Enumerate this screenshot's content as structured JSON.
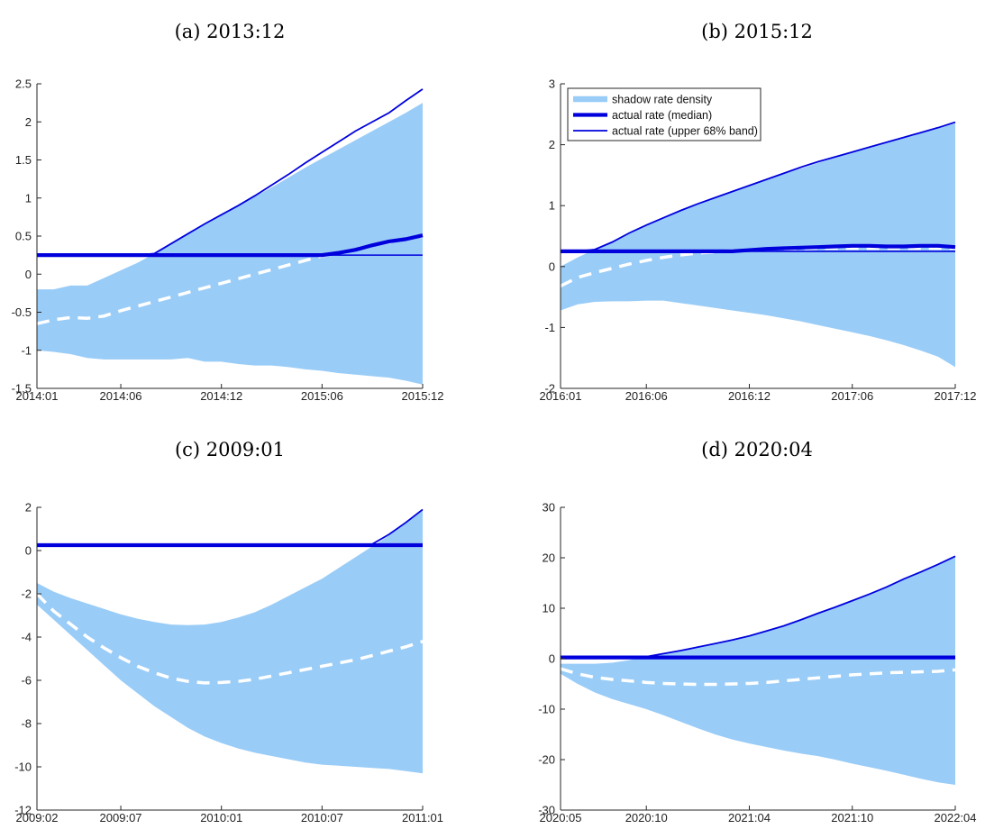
{
  "chart_data": [
    {
      "type": "area",
      "title": "(a) 2013:12",
      "x_tick_labels": [
        "2014:01",
        "2014:06",
        "2014:12",
        "2015:06",
        "2015:12"
      ],
      "x_tick_positions": [
        1,
        6,
        12,
        18,
        24
      ],
      "x_range": [
        1,
        24
      ],
      "ylim": [
        -1.5,
        2.5
      ],
      "y_ticks": [
        -1.5,
        -1,
        -0.5,
        0,
        0.5,
        1,
        1.5,
        2,
        2.5
      ],
      "y_tick_labels": [
        "-1.5",
        "-1",
        "-0.5",
        "0",
        "0.5",
        "1",
        "1.5",
        "2",
        "2.5"
      ],
      "series": [
        {
          "kind": "band",
          "upper": [
            -0.2,
            -0.2,
            -0.15,
            -0.15,
            -0.05,
            0.05,
            0.15,
            0.27,
            0.4,
            0.53,
            0.66,
            0.78,
            0.9,
            1.02,
            1.14,
            1.27,
            1.4,
            1.52,
            1.64,
            1.76,
            1.88,
            2.0,
            2.12,
            2.25
          ],
          "lower": [
            -1.0,
            -1.02,
            -1.05,
            -1.1,
            -1.12,
            -1.12,
            -1.12,
            -1.12,
            -1.12,
            -1.1,
            -1.15,
            -1.15,
            -1.18,
            -1.2,
            -1.2,
            -1.22,
            -1.25,
            -1.27,
            -1.3,
            -1.32,
            -1.34,
            -1.36,
            -1.4,
            -1.45
          ]
        },
        {
          "kind": "dashed",
          "values": [
            -0.65,
            -0.6,
            -0.57,
            -0.58,
            -0.55,
            -0.48,
            -0.42,
            -0.36,
            -0.3,
            -0.24,
            -0.18,
            -0.12,
            -0.06,
            0.0,
            0.06,
            0.12,
            0.18,
            0.24,
            0.28,
            0.33,
            0.38,
            0.42,
            0.46,
            0.5
          ]
        },
        {
          "kind": "median",
          "values": [
            0.25,
            0.25,
            0.25,
            0.25,
            0.25,
            0.25,
            0.25,
            0.25,
            0.25,
            0.25,
            0.25,
            0.25,
            0.25,
            0.25,
            0.25,
            0.25,
            0.25,
            0.25,
            0.28,
            0.32,
            0.38,
            0.43,
            0.46,
            0.51
          ]
        },
        {
          "kind": "upper_band",
          "values": [
            0.25,
            0.25,
            0.25,
            0.25,
            0.25,
            0.25,
            0.25,
            0.27,
            0.4,
            0.53,
            0.66,
            0.78,
            0.9,
            1.03,
            1.17,
            1.31,
            1.46,
            1.6,
            1.74,
            1.88,
            2.0,
            2.12,
            2.28,
            2.43
          ]
        },
        {
          "kind": "actual",
          "values": [
            0.25,
            0.25,
            0.25,
            0.25,
            0.25,
            0.25,
            0.25,
            0.25,
            0.25,
            0.25,
            0.25,
            0.25,
            0.25,
            0.25,
            0.25,
            0.25,
            0.25,
            0.25,
            0.25,
            0.25,
            0.25,
            0.25,
            0.25,
            0.25
          ]
        }
      ]
    },
    {
      "type": "area",
      "title": "(b) 2015:12",
      "x_tick_labels": [
        "2016:01",
        "2016:06",
        "2016:12",
        "2017:06",
        "2017:12"
      ],
      "x_tick_positions": [
        1,
        6,
        12,
        18,
        24
      ],
      "x_range": [
        1,
        24
      ],
      "ylim": [
        -2,
        3
      ],
      "y_ticks": [
        -2,
        -1,
        0,
        1,
        2,
        3
      ],
      "y_tick_labels": [
        "-2",
        "-1",
        "0",
        "1",
        "2",
        "3"
      ],
      "legend": {
        "placement": "top-left",
        "entries": [
          {
            "label": "shadow rate density",
            "color": "#99ccf7"
          },
          {
            "label": "actual rate (median)",
            "color": "#0000dd"
          },
          {
            "label": "actual rate (upper 68% band)",
            "color": "#0000dd"
          }
        ]
      },
      "series": [
        {
          "kind": "band",
          "upper": [
            0.0,
            0.15,
            0.28,
            0.4,
            0.55,
            0.68,
            0.8,
            0.92,
            1.03,
            1.13,
            1.23,
            1.33,
            1.43,
            1.52,
            1.61,
            1.7,
            1.79,
            1.87,
            1.95,
            2.03,
            2.11,
            2.19,
            2.27,
            2.35
          ]
        },
        {
          "kind": "band_lower",
          "lower": [
            -0.72,
            -0.62,
            -0.58,
            -0.57,
            -0.57,
            -0.56,
            -0.56,
            -0.6,
            -0.64,
            -0.68,
            -0.72,
            -0.76,
            -0.8,
            -0.85,
            -0.9,
            -0.96,
            -1.02,
            -1.08,
            -1.14,
            -1.21,
            -1.29,
            -1.38,
            -1.48,
            -1.65
          ]
        },
        {
          "kind": "dashed",
          "values": [
            -0.32,
            -0.18,
            -0.1,
            -0.03,
            0.04,
            0.1,
            0.15,
            0.19,
            0.22,
            0.24,
            0.26,
            0.27,
            0.28,
            0.29,
            0.29,
            0.3,
            0.3,
            0.3,
            0.3,
            0.3,
            0.3,
            0.3,
            0.3,
            0.3
          ]
        },
        {
          "kind": "median",
          "values": [
            0.25,
            0.25,
            0.25,
            0.25,
            0.25,
            0.25,
            0.25,
            0.25,
            0.25,
            0.25,
            0.25,
            0.27,
            0.29,
            0.3,
            0.31,
            0.32,
            0.33,
            0.34,
            0.34,
            0.33,
            0.33,
            0.34,
            0.34,
            0.32
          ]
        },
        {
          "kind": "upper_band",
          "values": [
            0.25,
            0.25,
            0.28,
            0.4,
            0.55,
            0.68,
            0.8,
            0.92,
            1.03,
            1.13,
            1.23,
            1.33,
            1.43,
            1.53,
            1.63,
            1.72,
            1.8,
            1.88,
            1.96,
            2.04,
            2.12,
            2.2,
            2.28,
            2.37
          ]
        },
        {
          "kind": "actual",
          "values": [
            0.25,
            0.25,
            0.25,
            0.25,
            0.25,
            0.25,
            0.25,
            0.25,
            0.25,
            0.25,
            0.25,
            0.25,
            0.25,
            0.25,
            0.25,
            0.25,
            0.25,
            0.25,
            0.25,
            0.25,
            0.25,
            0.25,
            0.25,
            0.25
          ]
        }
      ]
    },
    {
      "type": "area",
      "title": "(c) 2009:01",
      "x_tick_labels": [
        "2009:02",
        "2009:07",
        "2010:01",
        "2010:07",
        "2011:01"
      ],
      "x_tick_positions": [
        1,
        6,
        12,
        18,
        24
      ],
      "x_range": [
        1,
        24
      ],
      "ylim": [
        -12,
        2
      ],
      "y_ticks": [
        -12,
        -10,
        -8,
        -6,
        -4,
        -2,
        0,
        2
      ],
      "y_tick_labels": [
        "-12",
        "-10",
        "-8",
        "-6",
        "-4",
        "-2",
        "0",
        "2"
      ],
      "series": [
        {
          "kind": "band",
          "upper": [
            -1.5,
            -1.9,
            -2.2,
            -2.45,
            -2.7,
            -2.95,
            -3.15,
            -3.3,
            -3.42,
            -3.45,
            -3.42,
            -3.3,
            -3.1,
            -2.85,
            -2.5,
            -2.1,
            -1.7,
            -1.3,
            -0.8,
            -0.3,
            0.2,
            0.7,
            1.3,
            1.9
          ]
        },
        {
          "kind": "band_lower",
          "lower": [
            -2.5,
            -3.2,
            -3.9,
            -4.6,
            -5.3,
            -6.0,
            -6.6,
            -7.2,
            -7.7,
            -8.2,
            -8.6,
            -8.9,
            -9.15,
            -9.35,
            -9.5,
            -9.65,
            -9.8,
            -9.9,
            -9.95,
            -10.0,
            -10.05,
            -10.1,
            -10.2,
            -10.3
          ]
        },
        {
          "kind": "dashed",
          "values": [
            -2.0,
            -2.8,
            -3.4,
            -4.0,
            -4.5,
            -4.95,
            -5.35,
            -5.65,
            -5.9,
            -6.05,
            -6.12,
            -6.1,
            -6.05,
            -5.95,
            -5.8,
            -5.65,
            -5.5,
            -5.35,
            -5.2,
            -5.05,
            -4.85,
            -4.65,
            -4.45,
            -4.2
          ]
        },
        {
          "kind": "median",
          "values": [
            0.25,
            0.25,
            0.25,
            0.25,
            0.25,
            0.25,
            0.25,
            0.25,
            0.25,
            0.25,
            0.25,
            0.25,
            0.25,
            0.25,
            0.25,
            0.25,
            0.25,
            0.25,
            0.25,
            0.25,
            0.25,
            0.25,
            0.25,
            0.25
          ]
        },
        {
          "kind": "upper_band",
          "values": [
            0.25,
            0.25,
            0.25,
            0.25,
            0.25,
            0.25,
            0.25,
            0.25,
            0.25,
            0.25,
            0.25,
            0.25,
            0.25,
            0.25,
            0.25,
            0.25,
            0.25,
            0.25,
            0.25,
            0.25,
            0.3,
            0.75,
            1.3,
            1.9
          ]
        },
        {
          "kind": "actual",
          "values": [
            0.25,
            0.25,
            0.25,
            0.25,
            0.25,
            0.25,
            0.25,
            0.25,
            0.25,
            0.25,
            0.25,
            0.25,
            0.25,
            0.25,
            0.25,
            0.25,
            0.25,
            0.25,
            0.25,
            0.25,
            0.25,
            0.25,
            0.25,
            0.25
          ]
        }
      ]
    },
    {
      "type": "area",
      "title": "(d) 2020:04",
      "x_tick_labels": [
        "2020:05",
        "2020:10",
        "2021:04",
        "2021:10",
        "2022:04"
      ],
      "x_tick_positions": [
        1,
        6,
        12,
        18,
        24
      ],
      "x_range": [
        1,
        24
      ],
      "ylim": [
        -30,
        30
      ],
      "y_ticks": [
        -30,
        -20,
        -10,
        0,
        10,
        20,
        30
      ],
      "y_tick_labels": [
        "-30",
        "-20",
        "-10",
        "0",
        "10",
        "20",
        "30"
      ],
      "series": [
        {
          "kind": "band",
          "upper": [
            -1.0,
            -1.0,
            -1.0,
            -0.8,
            -0.3,
            0.4,
            1.0,
            1.6,
            2.3,
            3.0,
            3.7,
            4.5,
            5.5,
            6.5,
            7.7,
            9.0,
            10.2,
            11.5,
            12.8,
            14.2,
            15.8,
            17.2,
            18.7,
            20.3
          ]
        },
        {
          "kind": "band_lower",
          "lower": [
            -3.0,
            -5.0,
            -6.7,
            -8.0,
            -9.0,
            -10.0,
            -11.2,
            -12.5,
            -13.8,
            -15.0,
            -16.0,
            -16.8,
            -17.5,
            -18.2,
            -18.8,
            -19.3,
            -20.0,
            -20.8,
            -21.5,
            -22.2,
            -23.0,
            -23.8,
            -24.5,
            -25.0
          ]
        },
        {
          "kind": "dashed",
          "values": [
            -2.0,
            -3.0,
            -3.7,
            -4.1,
            -4.4,
            -4.7,
            -4.9,
            -5.0,
            -5.1,
            -5.1,
            -5.0,
            -4.9,
            -4.7,
            -4.4,
            -4.1,
            -3.8,
            -3.5,
            -3.2,
            -3.0,
            -2.8,
            -2.7,
            -2.6,
            -2.5,
            -2.2
          ]
        },
        {
          "kind": "median",
          "values": [
            0.25,
            0.25,
            0.25,
            0.25,
            0.25,
            0.25,
            0.25,
            0.25,
            0.25,
            0.25,
            0.25,
            0.25,
            0.25,
            0.25,
            0.25,
            0.25,
            0.25,
            0.25,
            0.25,
            0.25,
            0.25,
            0.25,
            0.25,
            0.25
          ]
        },
        {
          "kind": "upper_band",
          "values": [
            0.25,
            0.25,
            0.25,
            0.25,
            0.25,
            0.4,
            1.0,
            1.6,
            2.3,
            3.0,
            3.7,
            4.5,
            5.5,
            6.5,
            7.7,
            9.0,
            10.2,
            11.5,
            12.8,
            14.2,
            15.8,
            17.2,
            18.7,
            20.3
          ]
        },
        {
          "kind": "actual",
          "values": [
            0.25,
            0.25,
            0.25,
            0.25,
            0.25,
            0.25,
            0.25,
            0.25,
            0.25,
            0.25,
            0.25,
            0.25,
            0.25,
            0.25,
            0.25,
            0.25,
            0.25,
            0.25,
            0.25,
            0.25,
            0.25,
            0.25,
            0.25,
            0.25
          ]
        }
      ]
    }
  ]
}
